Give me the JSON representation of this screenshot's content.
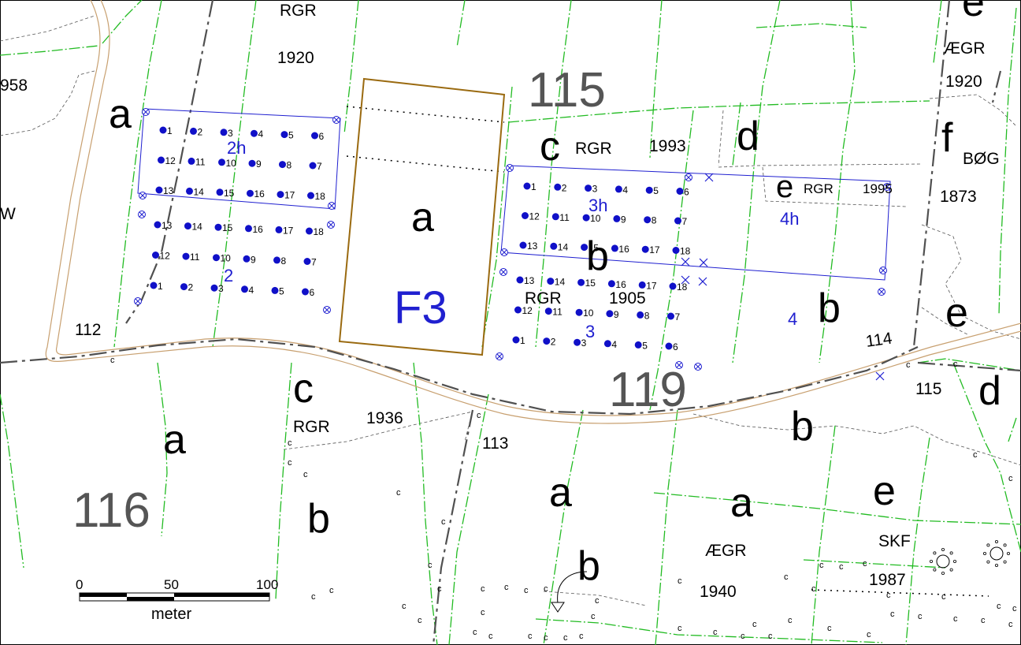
{
  "map": {
    "forest_sections": [
      {
        "id": "s115",
        "label": "115"
      },
      {
        "id": "s116",
        "label": "116"
      },
      {
        "id": "s119",
        "label": "119"
      }
    ],
    "subsection_letters": [
      {
        "id": "l1",
        "label": "a"
      },
      {
        "id": "l2",
        "label": "a"
      },
      {
        "id": "l3",
        "label": "c"
      },
      {
        "id": "l4",
        "label": "d"
      },
      {
        "id": "l5",
        "label": "e"
      },
      {
        "id": "l6",
        "label": "f"
      },
      {
        "id": "l7",
        "label": "b"
      },
      {
        "id": "l8",
        "label": "b"
      },
      {
        "id": "l9",
        "label": "e"
      },
      {
        "id": "l10",
        "label": "c"
      },
      {
        "id": "l11",
        "label": "a"
      },
      {
        "id": "l12",
        "label": "b"
      },
      {
        "id": "l13",
        "label": "a"
      },
      {
        "id": "l14",
        "label": "a"
      },
      {
        "id": "l15",
        "label": "e"
      },
      {
        "id": "l16",
        "label": "b"
      },
      {
        "id": "l17",
        "label": "d"
      },
      {
        "id": "l18",
        "label": "b"
      },
      {
        "id": "l19",
        "label": "e"
      }
    ],
    "stand_info": [
      {
        "id": "i1",
        "label": "RGR"
      },
      {
        "id": "i2",
        "label": "1920"
      },
      {
        "id": "i3",
        "label": "958"
      },
      {
        "id": "i4",
        "label": "ÆGR"
      },
      {
        "id": "i5",
        "label": "1920"
      },
      {
        "id": "i6",
        "label": "RGR"
      },
      {
        "id": "i7",
        "label": "1993"
      },
      {
        "id": "i8",
        "label": "RGR"
      },
      {
        "id": "i9",
        "label": "1995"
      },
      {
        "id": "i10",
        "label": "BØG"
      },
      {
        "id": "i11",
        "label": "1873"
      },
      {
        "id": "i12",
        "label": "W"
      },
      {
        "id": "i13",
        "label": "RGR"
      },
      {
        "id": "i14",
        "label": "1905"
      },
      {
        "id": "i15",
        "label": "RGR"
      },
      {
        "id": "i16",
        "label": "1936"
      },
      {
        "id": "i17",
        "label": "ÆGR"
      },
      {
        "id": "i18",
        "label": "1940"
      },
      {
        "id": "i19",
        "label": "SKF"
      },
      {
        "id": "i20",
        "label": "1987"
      },
      {
        "id": "i21",
        "label": "112"
      },
      {
        "id": "i22",
        "label": "113"
      },
      {
        "id": "i23",
        "label": "114"
      },
      {
        "id": "i24",
        "label": "115"
      }
    ],
    "plot_labels": [
      {
        "id": "p1",
        "label": "2h"
      },
      {
        "id": "p2",
        "label": "2"
      },
      {
        "id": "p3",
        "label": "3h"
      },
      {
        "id": "p4",
        "label": "3"
      },
      {
        "id": "p5",
        "label": "4h"
      },
      {
        "id": "p6",
        "label": "4"
      },
      {
        "id": "p7",
        "label": "F3"
      }
    ],
    "plot_numbers_rows": [
      [
        "1",
        "2",
        "3",
        "4",
        "5",
        "6"
      ],
      [
        "12",
        "11",
        "10",
        "9",
        "8",
        "7"
      ],
      [
        "13",
        "14",
        "15",
        "16",
        "17",
        "18"
      ]
    ],
    "scale_bar": {
      "ticks": [
        "0",
        "50",
        "100"
      ],
      "unit": "meter"
    },
    "colors": {
      "stand_border": "#22bb22",
      "road": "#c8a070",
      "section_border": "#505050",
      "plot_frame": "#2020d0",
      "trial_box": "#9a6a10",
      "dot": "#1010c8"
    }
  }
}
